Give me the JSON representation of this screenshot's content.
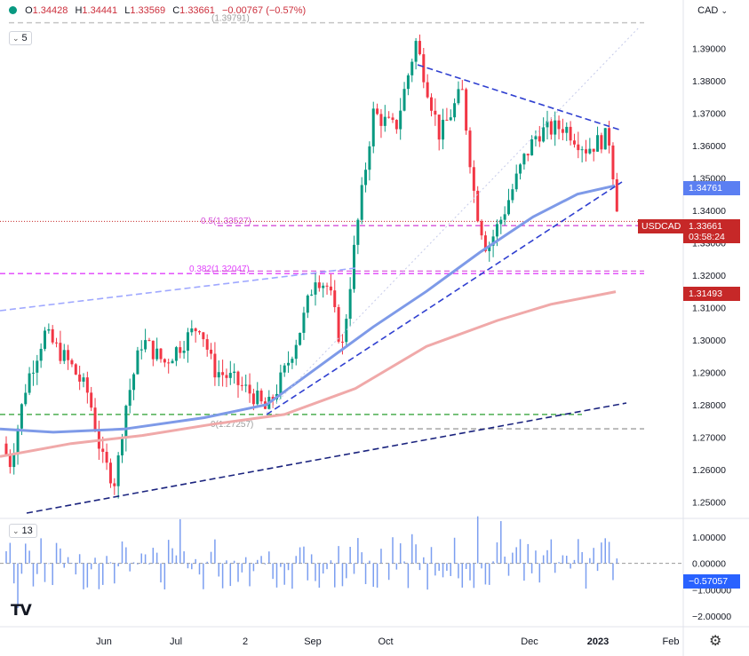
{
  "header": {
    "ohlc": [
      {
        "k": "O",
        "v": "1.34428"
      },
      {
        "k": "H",
        "v": "1.34441"
      },
      {
        "k": "L",
        "v": "1.33569"
      },
      {
        "k": "C",
        "v": "1.33661"
      },
      {
        "k": "",
        "v": "−0.00767 (−0.57%)"
      }
    ],
    "price_interval": "5",
    "volume_interval": "13",
    "currency": "CAD"
  },
  "labels": {
    "symbol": "USDCAD",
    "last_price": "1.33661",
    "countdown": "03:58:24",
    "ma_fast": "1.34761",
    "ma_slow": "1.31493",
    "osc_value": "−0.57057"
  },
  "colors": {
    "up": "#089981",
    "down": "#f23645",
    "ma_fast": "#7e9ae8",
    "ma_slow": "#f0a9a9",
    "trend": "#2f3fd0",
    "fib_mid": "#d44fd9",
    "fib_382": "#e040fb",
    "fib_0": "#9e9e9e",
    "support": "#4caf50",
    "volume": "#7b9ef0",
    "last_price_bg": "#c62828",
    "ma_fast_bg": "#5b7ff2",
    "ma_slow_bg": "#c62828",
    "osc_bg": "#2962ff"
  },
  "chart_data": {
    "type": "candlestick",
    "y_ticks": [
      "1.39000",
      "1.38000",
      "1.37000",
      "1.36000",
      "1.35000",
      "1.34000",
      "1.33000",
      "1.32000",
      "1.31000",
      "1.30000",
      "1.29000",
      "1.28000",
      "1.27000",
      "1.26000",
      "1.25000"
    ],
    "ylim": [
      1.246,
      1.4
    ],
    "x_ticks": [
      "Jun",
      "Jul",
      "2",
      "Sep",
      "Oct",
      "Dec",
      "2023",
      "Feb"
    ],
    "fib_levels": [
      {
        "label": "0.5(1.33527)",
        "value": 1.33527
      },
      {
        "label": "0.382(1.32047)",
        "value": 1.32047
      },
      {
        "label": "0(1.27257)",
        "value": 1.27257
      },
      {
        "label": "(1.39791)",
        "value": 1.39791
      }
    ],
    "support_level": 1.277,
    "osc_ticks": [
      "1.00000",
      "0.00000",
      "−1.00000",
      "−2.00000"
    ],
    "osc_ylim": [
      -2.2,
      1.3
    ]
  }
}
